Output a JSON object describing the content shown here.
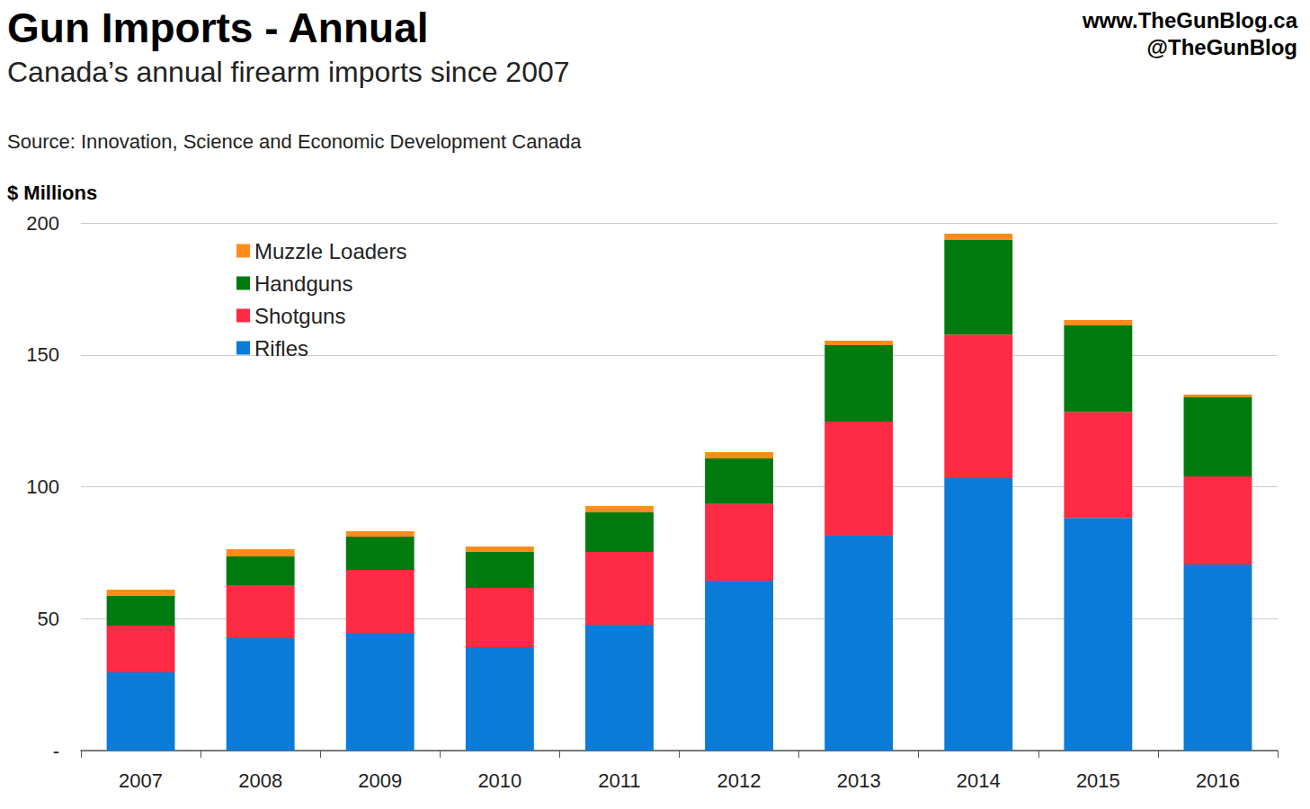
{
  "chart_data": {
    "type": "bar",
    "title": "Gun Imports - Annual",
    "subtitle": "Canada’s annual firearm imports since 2007",
    "source": "Source: Innovation, Science and Economic Development Canada",
    "annotations": [
      "www.TheGunBlog.ca",
      "@TheGunBlog"
    ],
    "y_label": "$ Millions",
    "categories": [
      "2007",
      "2008",
      "2009",
      "2010",
      "2011",
      "2012",
      "2013",
      "2014",
      "2015",
      "2016"
    ],
    "series": [
      {
        "name": "Rifles",
        "color": "#0a7bd6",
        "values": [
          29.6,
          42.6,
          44.6,
          39.2,
          47.7,
          64.4,
          81.4,
          103.2,
          88.2,
          70.5
        ]
      },
      {
        "name": "Shotguns",
        "color": "#ff2a44",
        "values": [
          17.8,
          19.8,
          23.9,
          22.5,
          27.6,
          29.0,
          43.3,
          54.5,
          40.2,
          33.4
        ]
      },
      {
        "name": "Handguns",
        "color": "#007a0e",
        "values": [
          11.2,
          11.2,
          12.6,
          13.6,
          15.0,
          17.3,
          29.0,
          35.8,
          32.8,
          30.0
        ]
      },
      {
        "name": "Muzzle Loaders",
        "color": "#ff8c1a",
        "values": [
          2.4,
          2.7,
          2.0,
          2.0,
          2.4,
          2.4,
          1.7,
          2.4,
          2.0,
          1.0
        ]
      }
    ],
    "stacked": true,
    "ylim": [
      0,
      200
    ],
    "yticks": [
      {
        "value": 0,
        "label": "-"
      },
      50,
      100,
      150,
      200
    ],
    "grid": true,
    "legend": "upper left"
  }
}
